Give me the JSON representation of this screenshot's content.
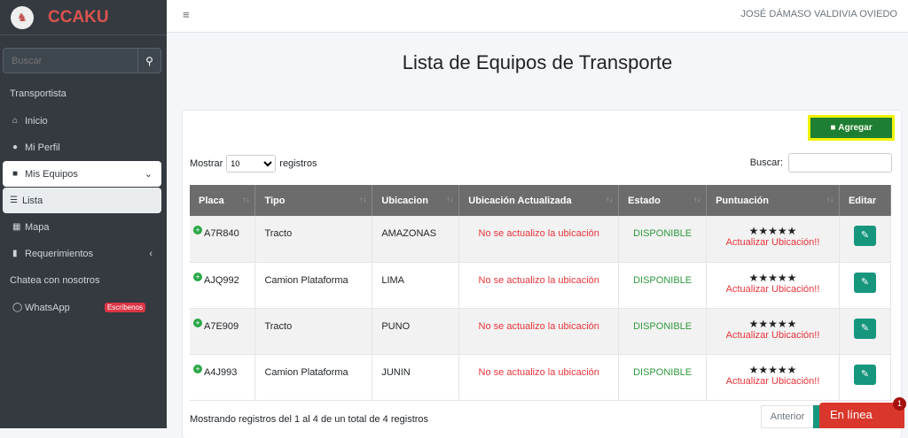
{
  "sidebar": {
    "brand": "CCAKU",
    "search_placeholder": "Buscar",
    "section1": "Transportista",
    "items": [
      {
        "label": "Inicio",
        "icon": "home-icon"
      },
      {
        "label": "Mi Perfil",
        "icon": "user-icon"
      },
      {
        "label": "Mis Equipos",
        "icon": "truck-icon"
      },
      {
        "label": "Lista",
        "icon": "list-icon"
      },
      {
        "label": "Mapa",
        "icon": "map-icon"
      },
      {
        "label": "Requerimientos",
        "icon": "clipboard-icon"
      }
    ],
    "section2": "Chatea con nosotros",
    "whatsapp": "WhatsApp",
    "whatsapp_badge": "Escríbenos"
  },
  "topbar": {
    "user": "JOSÉ DÁMASO VALDIVIA OVIEDO"
  },
  "page_title": "Lista de Equipos de Transporte",
  "toolbar": {
    "add": "Agregar",
    "show": "Mostrar",
    "show_value": "10",
    "records": "registros",
    "search": "Buscar:"
  },
  "table": {
    "headers": [
      "Placa",
      "Tipo",
      "Ubicacion",
      "Ubicación Actualizada",
      "Estado",
      "Puntuación",
      "Editar"
    ],
    "rows": [
      {
        "placa": "A7R840",
        "tipo": "Tracto",
        "ubicacion": "AMAZONAS",
        "actualizada": "No se actualizo la ubicación",
        "estado": "DISPONIBLE",
        "stars": "★★★★★",
        "aviso": "Actualizar Ubicación!!"
      },
      {
        "placa": "AJQ992",
        "tipo": "Camion Plataforma",
        "ubicacion": "LIMA",
        "actualizada": "No se actualizo la ubicación",
        "estado": "DISPONIBLE",
        "stars": "★★★★★",
        "aviso": "Actualizar Ubicación!!"
      },
      {
        "placa": "A7E909",
        "tipo": "Tracto",
        "ubicacion": "PUNO",
        "actualizada": "No se actualizo la ubicación",
        "estado": "DISPONIBLE",
        "stars": "★★★★★",
        "aviso": "Actualizar Ubicación!!"
      },
      {
        "placa": "A4J993",
        "tipo": "Camion Plataforma",
        "ubicacion": "JUNIN",
        "actualizada": "No se actualizo la ubicación",
        "estado": "DISPONIBLE",
        "stars": "★★★★★",
        "aviso": "Actualizar Ubicación!!"
      }
    ]
  },
  "footer": {
    "info": "Mostrando registros del 1 al 4 de un total de 4 registros",
    "prev": "Anterior"
  },
  "chat": {
    "label": "En línea",
    "count": "1"
  }
}
